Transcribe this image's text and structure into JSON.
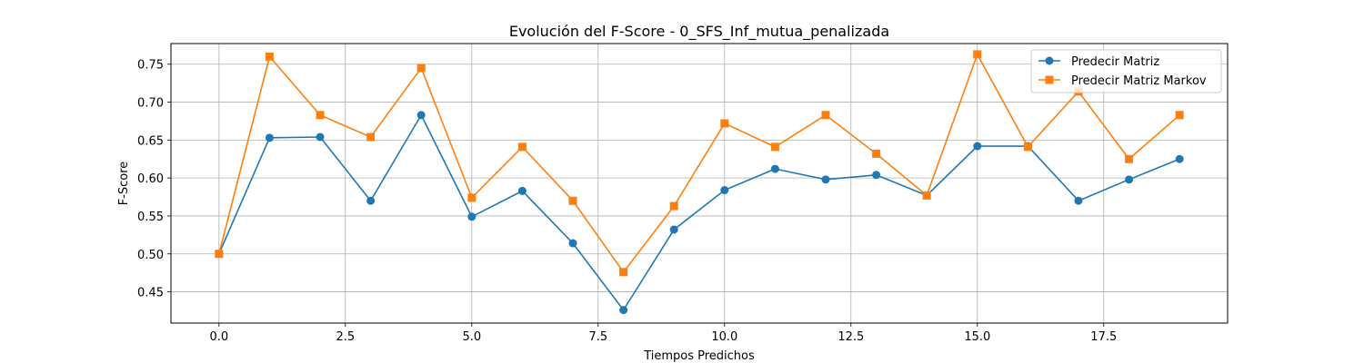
{
  "chart_data": {
    "type": "line",
    "title": "Evolución del F-Score - 0_SFS_Inf_mutua_penalizada",
    "xlabel": "Tiempos Predichos",
    "ylabel": "F-Score",
    "xlim": [
      -0.95,
      19.95
    ],
    "ylim": [
      0.4088,
      0.7772
    ],
    "xticks": [
      0.0,
      2.5,
      5.0,
      7.5,
      10.0,
      12.5,
      15.0,
      17.5
    ],
    "xtick_labels": [
      "0.0",
      "2.5",
      "5.0",
      "7.5",
      "10.0",
      "12.5",
      "15.0",
      "17.5"
    ],
    "yticks": [
      0.45,
      0.5,
      0.55,
      0.6,
      0.65,
      0.7,
      0.75
    ],
    "ytick_labels": [
      "0.45",
      "0.50",
      "0.55",
      "0.60",
      "0.65",
      "0.70",
      "0.75"
    ],
    "grid": true,
    "legend_position": "top-right",
    "x": [
      0,
      1,
      2,
      3,
      4,
      5,
      6,
      7,
      8,
      9,
      10,
      11,
      12,
      13,
      14,
      15,
      16,
      17,
      18,
      19
    ],
    "series": [
      {
        "name": "Predecir Matriz",
        "color": "#1f77b4",
        "marker": "circle",
        "values": [
          0.5,
          0.653,
          0.654,
          0.57,
          0.683,
          0.549,
          0.583,
          0.514,
          0.426,
          0.532,
          0.584,
          0.612,
          0.598,
          0.604,
          0.577,
          0.642,
          0.642,
          0.57,
          0.598,
          0.625
        ]
      },
      {
        "name": "Predecir Matriz Markov",
        "color": "#ff7f0e",
        "marker": "square",
        "values": [
          0.5,
          0.76,
          0.683,
          0.654,
          0.745,
          0.574,
          0.641,
          0.57,
          0.476,
          0.563,
          0.672,
          0.641,
          0.683,
          0.632,
          0.577,
          0.763,
          0.641,
          0.714,
          0.625,
          0.683
        ]
      }
    ]
  }
}
